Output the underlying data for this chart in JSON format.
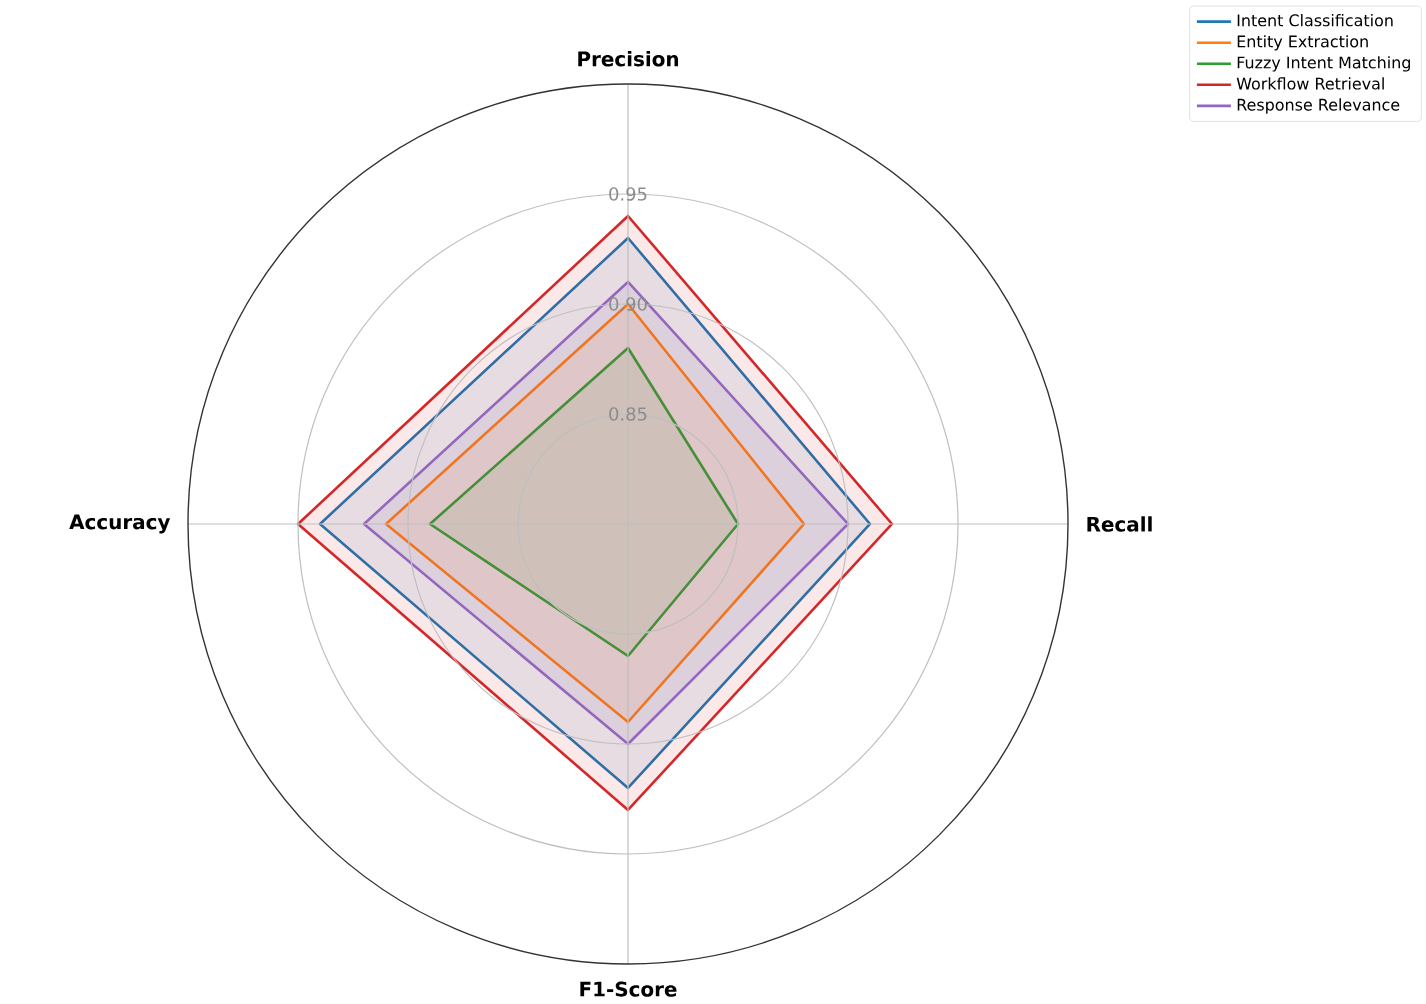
{
  "chart_data": {
    "type": "radar",
    "categories": [
      "Precision",
      "Recall",
      "F1-Score",
      "Accuracy"
    ],
    "series": [
      {
        "name": "Intent Classification",
        "color": "#1f77b4",
        "values": [
          0.93,
          0.91,
          0.92,
          0.94
        ]
      },
      {
        "name": "Entity Extraction",
        "color": "#ff7f0e",
        "values": [
          0.9,
          0.88,
          0.89,
          0.91
        ]
      },
      {
        "name": "Fuzzy Intent Matching",
        "color": "#2ca02c",
        "values": [
          0.88,
          0.85,
          0.86,
          0.89
        ]
      },
      {
        "name": "Workflow Retrieval",
        "color": "#d62728",
        "values": [
          0.94,
          0.92,
          0.93,
          0.95
        ]
      },
      {
        "name": "Response Relevance",
        "color": "#9467bd",
        "values": [
          0.91,
          0.9,
          0.9,
          0.92
        ]
      }
    ],
    "ylim": [
      0.8,
      1.0
    ],
    "yticks": [
      {
        "value": 0.85,
        "label": "0.85"
      },
      {
        "value": 0.9,
        "label": "0.90"
      },
      {
        "value": 0.95,
        "label": "0.95"
      }
    ],
    "grid": true,
    "legend": "top right",
    "line_style": "solid"
  }
}
